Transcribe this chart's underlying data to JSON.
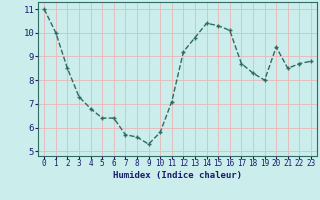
{
  "x": [
    0,
    1,
    2,
    3,
    4,
    5,
    6,
    7,
    8,
    9,
    10,
    11,
    12,
    13,
    14,
    15,
    16,
    17,
    18,
    19,
    20,
    21,
    22,
    23
  ],
  "y": [
    11.0,
    10.0,
    8.5,
    7.3,
    6.8,
    6.4,
    6.4,
    5.7,
    5.6,
    5.3,
    5.8,
    7.1,
    9.2,
    9.8,
    10.4,
    10.3,
    10.1,
    8.7,
    8.3,
    8.0,
    9.4,
    8.5,
    8.7,
    8.8
  ],
  "xlabel": "Humidex (Indice chaleur)",
  "xlim": [
    -0.5,
    23.5
  ],
  "ylim": [
    4.8,
    11.3
  ],
  "yticks": [
    5,
    6,
    7,
    8,
    9,
    10,
    11
  ],
  "xticks": [
    0,
    1,
    2,
    3,
    4,
    5,
    6,
    7,
    8,
    9,
    10,
    11,
    12,
    13,
    14,
    15,
    16,
    17,
    18,
    19,
    20,
    21,
    22,
    23
  ],
  "bg_color": "#cbeeed",
  "grid_color": "#e8b8b8",
  "line_color": "#2d6b63",
  "marker_color": "#2d6b63",
  "xlabel_color": "#1a1a6e",
  "tick_color": "#1a1a6e",
  "spine_color": "#2d6b63"
}
